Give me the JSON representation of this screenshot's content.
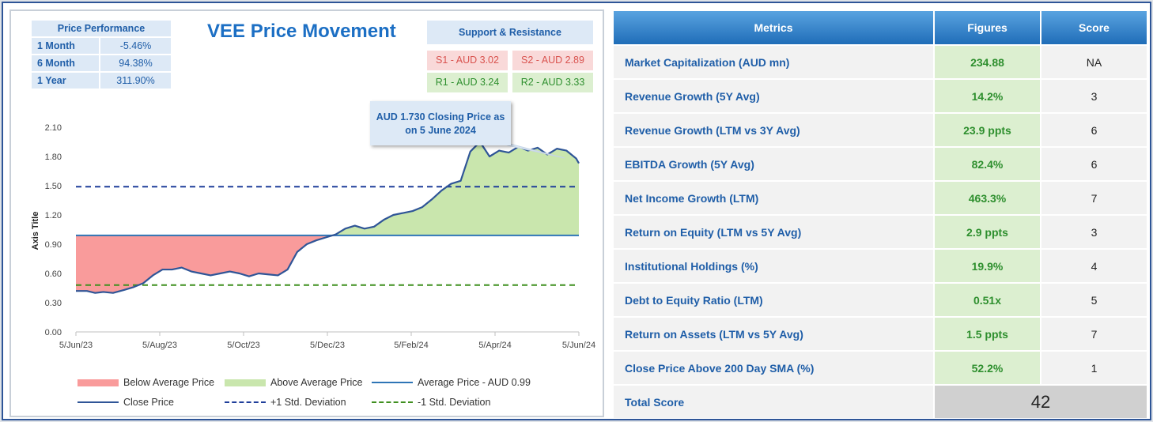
{
  "chart": {
    "title": "VEE Price Movement",
    "callout": "AUD 1.730 Closing Price as on 5 June 2024",
    "price_performance": {
      "header": "Price Performance",
      "rows": [
        {
          "label": "1 Month",
          "value": "-5.46%"
        },
        {
          "label": "6 Month",
          "value": "94.38%"
        },
        {
          "label": "1 Year",
          "value": "311.90%"
        }
      ]
    },
    "support_resistance": {
      "header": "Support & Resistance",
      "s1": "S1 - AUD 3.02",
      "s2": "S2 - AUD 2.89",
      "r1": "R1 - AUD 3.24",
      "r2": "R2 - AUD 3.33"
    },
    "legend": {
      "below": "Below Average Price",
      "above": "Above Average Price",
      "average": "Average Price - AUD 0.99",
      "close": "Close Price",
      "plus_sd": "+1 Std. Deviation",
      "minus_sd": "-1 Std. Deviation"
    },
    "colors": {
      "close": "#2f5597",
      "average": "#2e75b6",
      "below_fill": "#f99b9b",
      "above_fill": "#c9e6ad",
      "plus_sd": "#1f3e9a",
      "minus_sd": "#3f8f1f"
    }
  },
  "chart_data": {
    "type": "line",
    "title": "VEE Price Movement",
    "ylabel": "Axis Title",
    "xlabel": "",
    "ylim": [
      0,
      2.1
    ],
    "y_ticks": [
      "0.00",
      "0.30",
      "0.60",
      "0.90",
      "1.20",
      "1.50",
      "1.80",
      "2.10"
    ],
    "x_ticks": [
      "5/Jun/23",
      "5/Aug/23",
      "5/Oct/23",
      "5/Dec/23",
      "5/Feb/24",
      "5/Apr/24",
      "5/Jun/24"
    ],
    "grid": false,
    "legend_position": "bottom",
    "average_price": 0.99,
    "plus_1_sd": 1.49,
    "minus_1_sd": 0.48,
    "close_price": {
      "x": [
        0,
        8,
        14,
        20,
        27,
        35,
        42,
        49,
        56,
        63,
        70,
        77,
        84,
        91,
        98,
        105,
        112,
        119,
        126,
        133,
        140,
        147,
        154,
        161,
        168,
        175,
        182,
        189,
        196,
        203,
        210,
        217,
        224,
        231,
        238,
        245,
        252,
        259,
        266,
        273,
        280,
        287,
        294,
        301,
        308,
        315,
        322,
        329,
        336,
        343,
        350,
        357,
        364,
        366
      ],
      "y": [
        0.42,
        0.42,
        0.4,
        0.41,
        0.4,
        0.43,
        0.46,
        0.5,
        0.58,
        0.64,
        0.64,
        0.66,
        0.62,
        0.6,
        0.58,
        0.6,
        0.62,
        0.6,
        0.57,
        0.6,
        0.59,
        0.58,
        0.64,
        0.82,
        0.9,
        0.94,
        0.97,
        1.0,
        1.06,
        1.09,
        1.06,
        1.08,
        1.15,
        1.2,
        1.22,
        1.24,
        1.28,
        1.36,
        1.45,
        1.52,
        1.55,
        1.85,
        1.95,
        1.8,
        1.86,
        1.84,
        1.9,
        1.86,
        1.89,
        1.82,
        1.88,
        1.86,
        1.78,
        1.73
      ]
    }
  },
  "metrics": {
    "headers": {
      "metric": "Metrics",
      "figure": "Figures",
      "score": "Score"
    },
    "rows": [
      {
        "metric": "Market Capitalization (AUD mn)",
        "figure": "234.88",
        "score": "NA"
      },
      {
        "metric": "Revenue Growth (5Y Avg)",
        "figure": "14.2%",
        "score": "3"
      },
      {
        "metric": "Revenue Growth (LTM vs 3Y Avg)",
        "figure": "23.9 ppts",
        "score": "6"
      },
      {
        "metric": "EBITDA Growth (5Y Avg)",
        "figure": "82.4%",
        "score": "6"
      },
      {
        "metric": "Net Income Growth (LTM)",
        "figure": "463.3%",
        "score": "7"
      },
      {
        "metric": "Return on Equity (LTM vs 5Y Avg)",
        "figure": "2.9 ppts",
        "score": "3"
      },
      {
        "metric": "Institutional Holdings (%)",
        "figure": "19.9%",
        "score": "4"
      },
      {
        "metric": "Debt to Equity Ratio (LTM)",
        "figure": "0.51x",
        "score": "5"
      },
      {
        "metric": "Return on Assets (LTM vs 5Y Avg)",
        "figure": "1.5 ppts",
        "score": "7"
      },
      {
        "metric": "Close Price Above 200 Day SMA (%)",
        "figure": "52.2%",
        "score": "1"
      }
    ],
    "total_label": "Total Score",
    "total_value": "42"
  }
}
